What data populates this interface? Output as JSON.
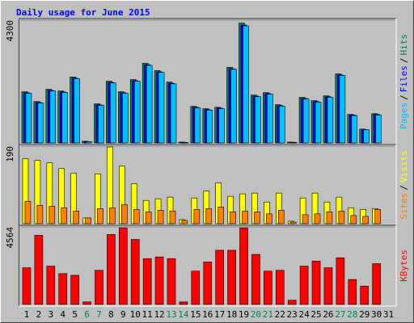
{
  "title": "Daily usage for June 2015",
  "legend_separator": "/",
  "chart_data": [
    {
      "type": "bar3",
      "ylim": [
        0,
        4300
      ],
      "yticks": [
        4300
      ],
      "series": [
        {
          "name": "Hits",
          "color": "#00805c",
          "values": [
            1795,
            1450,
            1880,
            1820,
            2310,
            60,
            1370,
            2165,
            1795,
            2220,
            2790,
            2535,
            2135,
            30,
            1280,
            1200,
            1250,
            2650,
            4200,
            1680,
            1765,
            1340,
            30,
            1595,
            1480,
            1650,
            2420,
            1000,
            485,
            1025,
            null
          ]
        },
        {
          "name": "Files",
          "color": "#0000ff",
          "values": [
            1760,
            1420,
            1840,
            1790,
            2270,
            50,
            1340,
            2120,
            1760,
            2180,
            2740,
            2490,
            2090,
            25,
            1250,
            1170,
            1220,
            2600,
            4130,
            1640,
            1730,
            1310,
            25,
            1560,
            1450,
            1620,
            2380,
            980,
            470,
            1000,
            null
          ]
        },
        {
          "name": "Pages",
          "color": "#00c0ff",
          "values": [
            1740,
            1400,
            1820,
            1770,
            2250,
            45,
            1320,
            2100,
            1740,
            2160,
            2720,
            2470,
            2070,
            20,
            1230,
            1150,
            1200,
            2580,
            4100,
            1620,
            1710,
            1290,
            20,
            1540,
            1430,
            1600,
            2360,
            960,
            460,
            980,
            null
          ]
        }
      ]
    },
    {
      "type": "bar2",
      "ylim": [
        0,
        190
      ],
      "yticks": [
        190
      ],
      "series": [
        {
          "name": "Visits",
          "color": "#ffff00",
          "values": [
            159,
            155,
            149,
            135,
            124,
            14,
            122,
            188,
            141,
            98,
            57,
            61,
            65,
            10,
            63,
            80,
            100,
            67,
            73,
            75,
            53,
            75,
            6,
            63,
            75,
            53,
            65,
            39,
            35,
            37,
            null
          ]
        },
        {
          "name": "Sites",
          "color": "#ff8000",
          "values": [
            55,
            45,
            43,
            39,
            31,
            14,
            37,
            39,
            47,
            35,
            29,
            33,
            31,
            8,
            35,
            37,
            41,
            29,
            31,
            29,
            24,
            33,
            4,
            22,
            24,
            29,
            31,
            20,
            18,
            35,
            null
          ]
        }
      ]
    },
    {
      "type": "bar1",
      "ylim": [
        0,
        4564
      ],
      "yticks": [
        4564
      ],
      "categories": [
        "1",
        "2",
        "3",
        "4",
        "5",
        "6",
        "7",
        "8",
        "9",
        "10",
        "11",
        "12",
        "13",
        "14",
        "15",
        "16",
        "17",
        "18",
        "19",
        "20",
        "21",
        "22",
        "23",
        "24",
        "25",
        "26",
        "27",
        "28",
        "29",
        "30",
        "31"
      ],
      "category_colors": [
        "#000000",
        "#000000",
        "#000000",
        "#000000",
        "#000000",
        "#00805c",
        "#00805c",
        "#000000",
        "#000000",
        "#000000",
        "#000000",
        "#000000",
        "#00805c",
        "#00805c",
        "#000000",
        "#000000",
        "#000000",
        "#000000",
        "#000000",
        "#00805c",
        "#00805c",
        "#000000",
        "#000000",
        "#000000",
        "#000000",
        "#000000",
        "#00805c",
        "#00805c",
        "#000000",
        "#000000",
        "#000000"
      ],
      "series": [
        {
          "name": "KBytes",
          "color": "#ff0000",
          "values": [
            2160,
            4070,
            2255,
            1815,
            1715,
            150,
            2010,
            4120,
            4510,
            3825,
            2700,
            2795,
            2700,
            150,
            1960,
            2500,
            3190,
            3190,
            4510,
            2945,
            1960,
            2010,
            245,
            2255,
            2550,
            2160,
            2745,
            1470,
            1080,
            2400,
            null
          ]
        }
      ]
    }
  ]
}
